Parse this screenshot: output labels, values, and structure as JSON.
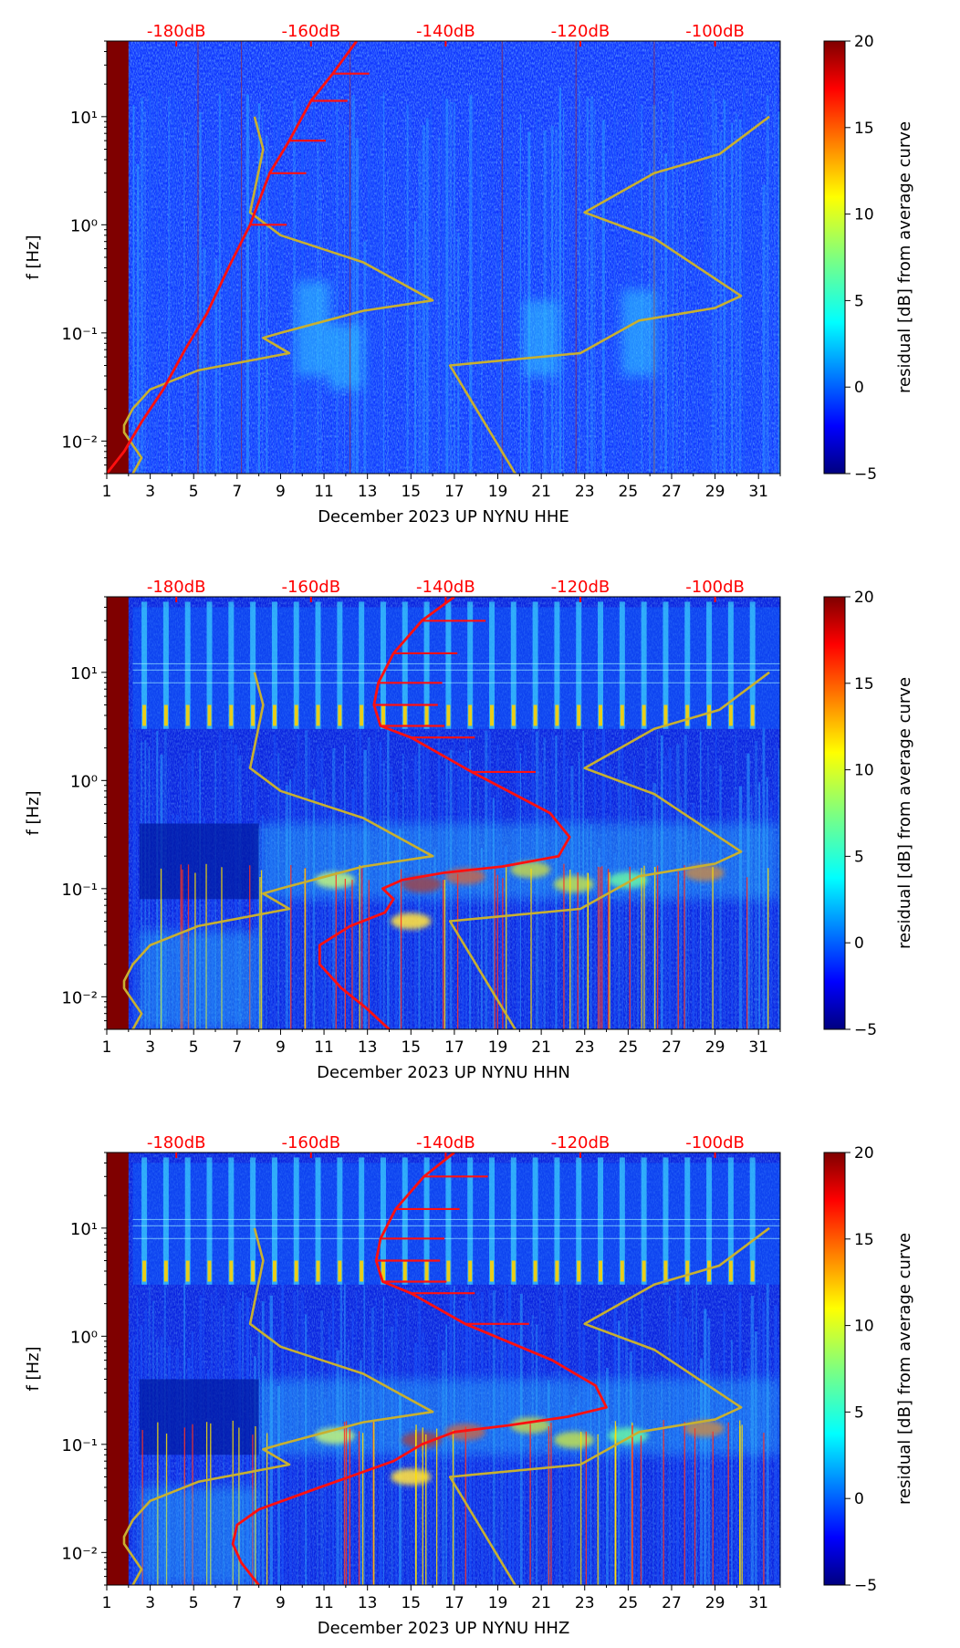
{
  "colors": {
    "background": "#ffffff",
    "top_db_labels": "#ff0000",
    "red_curve": "#ff1010",
    "noise_model": "#c8b030",
    "axis": "#000000"
  },
  "colorbar": {
    "label": "residual [dB] from average curve",
    "range": [
      -5,
      20
    ],
    "ticks": [
      "20",
      "15",
      "10",
      "5",
      "0",
      "−5"
    ],
    "tick_values": [
      20,
      15,
      10,
      5,
      0,
      -5
    ],
    "colormap": "jet"
  },
  "chart_data": [
    {
      "type": "heatmap",
      "xlabel": "December 2023 UP NYNU  HHE",
      "ylabel": "f [Hz]",
      "x_range": [
        1,
        32
      ],
      "y_range": [
        0.005,
        50
      ],
      "y_scale": "log",
      "x_tick_labels": [
        "1",
        "3",
        "5",
        "7",
        "9",
        "11",
        "13",
        "15",
        "17",
        "19",
        "21",
        "23",
        "25",
        "27",
        "29",
        "31"
      ],
      "y_tick_labels": [
        "10⁻²",
        "10⁻¹",
        "10⁰",
        "10¹"
      ],
      "top_db_labels": [
        "-180dB",
        "-160dB",
        "-140dB",
        "-120dB",
        "-100dB"
      ],
      "top_db_days": [
        4.2,
        10.4,
        16.6,
        22.8,
        29.0
      ],
      "red_curve": {
        "days": [
          1.0,
          1.8,
          2.6,
          3.6,
          4.6,
          5.6,
          6.6,
          7.6,
          8.5,
          9.4,
          10.4,
          11.4,
          12.5
        ],
        "freq": [
          0.005,
          0.008,
          0.015,
          0.03,
          0.07,
          0.15,
          0.4,
          1.0,
          3.0,
          6.0,
          14.0,
          25.0,
          50.0
        ]
      },
      "model_left": {
        "days": [
          7.8,
          8.2,
          7.6,
          9.0,
          12.8,
          16.0,
          12.8,
          9.0,
          8.2,
          9.4,
          5.2,
          3.0,
          2.2,
          1.8,
          1.8,
          2.6,
          2.2
        ],
        "freq": [
          10,
          5,
          1.3,
          0.8,
          0.45,
          0.2,
          0.16,
          0.1,
          0.09,
          0.065,
          0.045,
          0.03,
          0.02,
          0.014,
          0.012,
          0.007,
          0.005
        ]
      },
      "model_right": {
        "days": [
          31.5,
          29.2,
          26.2,
          23.0,
          26.2,
          30.2,
          29.0,
          25.5,
          22.8,
          16.8,
          19.8
        ],
        "freq": [
          10,
          4.5,
          3,
          1.3,
          0.75,
          0.22,
          0.17,
          0.13,
          0.065,
          0.05,
          0.005
        ]
      }
    },
    {
      "type": "heatmap",
      "xlabel": "December 2023 UP NYNU  HHN",
      "ylabel": "f [Hz]",
      "x_range": [
        1,
        32
      ],
      "y_range": [
        0.005,
        50
      ],
      "y_scale": "log",
      "x_tick_labels": [
        "1",
        "3",
        "5",
        "7",
        "9",
        "11",
        "13",
        "15",
        "17",
        "19",
        "21",
        "23",
        "25",
        "27",
        "29",
        "31"
      ],
      "y_tick_labels": [
        "10⁻²",
        "10⁻¹",
        "10⁰",
        "10¹"
      ],
      "top_db_labels": [
        "-180dB",
        "-160dB",
        "-140dB",
        "-120dB",
        "-100dB"
      ],
      "top_db_days": [
        4.2,
        10.4,
        16.6,
        22.8,
        29.0
      ],
      "red_curve": {
        "days": [
          14.0,
          12.9,
          11.8,
          10.8,
          10.8,
          12.2,
          13.8,
          14.2,
          13.7,
          14.6,
          16.5,
          19.2,
          21.8,
          22.3,
          21.4,
          17.8,
          15.0,
          13.6,
          13.3,
          13.5,
          14.2,
          15.5,
          17.0
        ],
        "freq": [
          0.005,
          0.008,
          0.012,
          0.02,
          0.03,
          0.045,
          0.06,
          0.08,
          0.1,
          0.12,
          0.14,
          0.16,
          0.2,
          0.3,
          0.5,
          1.2,
          2.5,
          3.2,
          5.0,
          8.0,
          15.0,
          30.0,
          50.0
        ]
      },
      "model_left": {
        "days": [
          7.8,
          8.2,
          7.6,
          9.0,
          12.8,
          16.0,
          12.8,
          9.0,
          8.2,
          9.4,
          5.2,
          3.0,
          2.2,
          1.8,
          1.8,
          2.6,
          2.2
        ],
        "freq": [
          10,
          5,
          1.3,
          0.8,
          0.45,
          0.2,
          0.16,
          0.1,
          0.09,
          0.065,
          0.045,
          0.03,
          0.02,
          0.014,
          0.012,
          0.007,
          0.005
        ]
      },
      "model_right": {
        "days": [
          31.5,
          29.2,
          26.2,
          23.0,
          26.2,
          30.2,
          29.0,
          25.5,
          22.8,
          16.8,
          19.8
        ],
        "freq": [
          10,
          4.5,
          3,
          1.3,
          0.75,
          0.22,
          0.17,
          0.13,
          0.065,
          0.05,
          0.005
        ]
      }
    },
    {
      "type": "heatmap",
      "xlabel": "December 2023 UP NYNU  HHZ",
      "ylabel": "f [Hz]",
      "x_range": [
        1,
        32
      ],
      "y_range": [
        0.005,
        50
      ],
      "y_scale": "log",
      "x_tick_labels": [
        "1",
        "3",
        "5",
        "7",
        "9",
        "11",
        "13",
        "15",
        "17",
        "19",
        "21",
        "23",
        "25",
        "27",
        "29",
        "31"
      ],
      "y_tick_labels": [
        "10⁻²",
        "10⁻¹",
        "10⁰",
        "10¹"
      ],
      "top_db_labels": [
        "-180dB",
        "-160dB",
        "-140dB",
        "-120dB",
        "-100dB"
      ],
      "top_db_days": [
        4.2,
        10.4,
        16.6,
        22.8,
        29.0
      ],
      "red_curve": {
        "days": [
          8.0,
          7.2,
          6.8,
          7.0,
          8.0,
          10.8,
          14.2,
          15.5,
          17.0,
          19.5,
          22.2,
          24.0,
          23.5,
          21.5,
          17.5,
          15.0,
          13.7,
          13.4,
          13.6,
          14.3,
          15.6,
          17.0
        ],
        "freq": [
          0.005,
          0.008,
          0.012,
          0.018,
          0.025,
          0.04,
          0.07,
          0.1,
          0.13,
          0.15,
          0.18,
          0.22,
          0.35,
          0.6,
          1.3,
          2.5,
          3.2,
          5.0,
          8.0,
          15.0,
          30.0,
          50.0
        ]
      },
      "model_left": {
        "days": [
          7.8,
          8.2,
          7.6,
          9.0,
          12.8,
          16.0,
          12.8,
          9.0,
          8.2,
          9.4,
          5.2,
          3.0,
          2.2,
          1.8,
          1.8,
          2.6,
          2.2
        ],
        "freq": [
          10,
          5,
          1.3,
          0.8,
          0.45,
          0.2,
          0.16,
          0.1,
          0.09,
          0.065,
          0.045,
          0.03,
          0.02,
          0.014,
          0.012,
          0.007,
          0.005
        ]
      },
      "model_right": {
        "days": [
          31.5,
          29.2,
          26.2,
          23.0,
          26.2,
          30.2,
          29.0,
          25.5,
          22.8,
          16.8,
          19.8
        ],
        "freq": [
          10,
          4.5,
          3,
          1.3,
          0.75,
          0.22,
          0.17,
          0.13,
          0.065,
          0.05,
          0.005
        ]
      }
    }
  ]
}
